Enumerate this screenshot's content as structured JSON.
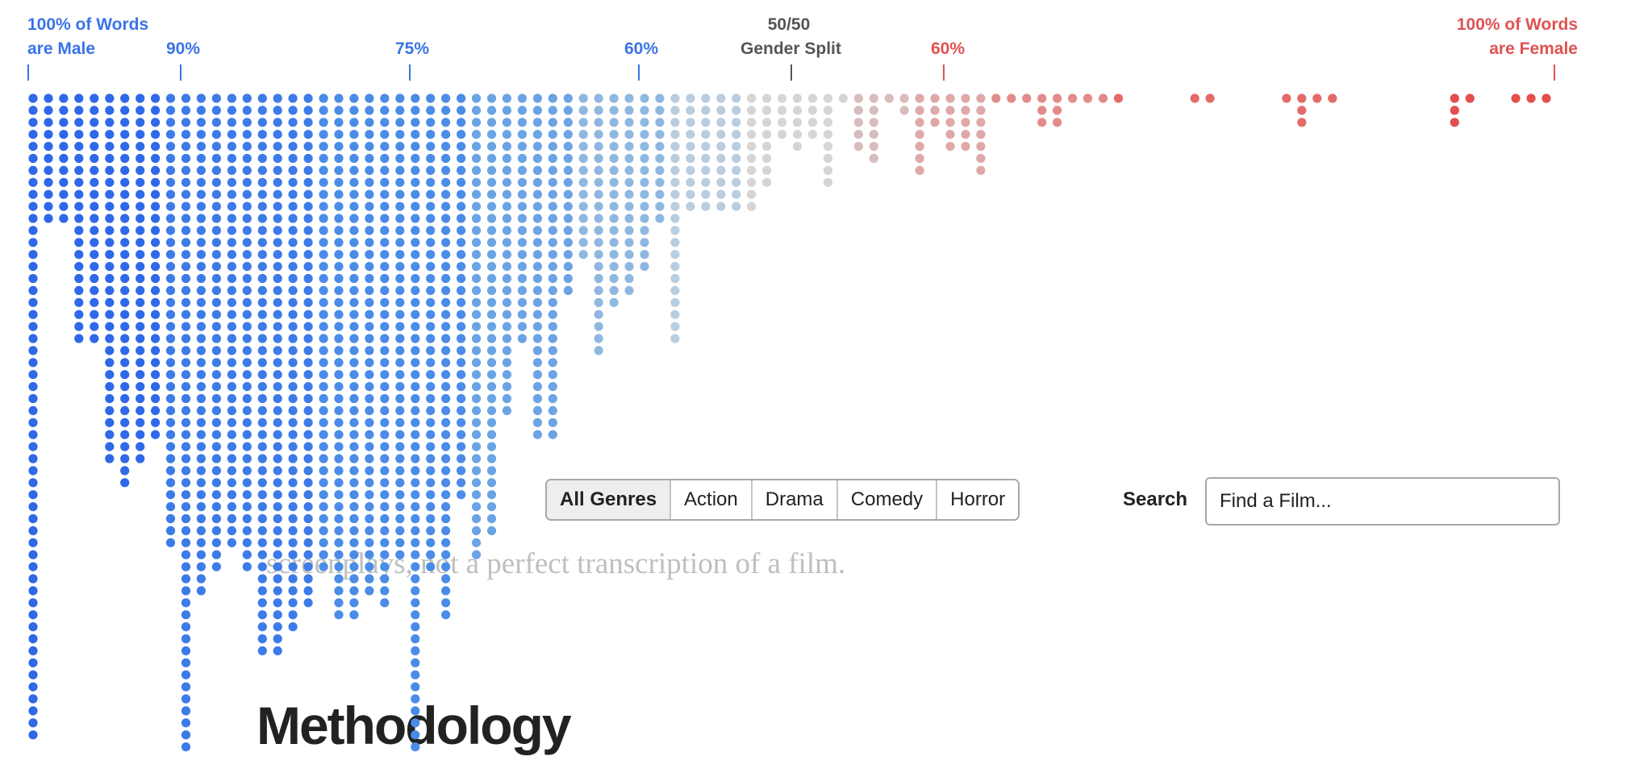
{
  "annotations": {
    "male_full_line1": "100% of Words",
    "male_full_line2": "are Male",
    "male_90": "90%",
    "male_75": "75%",
    "male_60": "60%",
    "split_line1": "50/50",
    "split_line2": "Gender Split",
    "female_60": "60%",
    "female_full_line1": "100% of Words",
    "female_full_line2": "are Female"
  },
  "colors": {
    "male": "#3a73e6",
    "female": "#e05252",
    "neutral": "#555555",
    "male_scale": [
      "#2f68e8",
      "#3c7be8",
      "#4a8ce8",
      "#6ba4e4",
      "#8fb8e0",
      "#b8cde0"
    ],
    "neutral_dot": "#d9d4d4",
    "female_scale": [
      "#d9bcbc",
      "#dea9a9",
      "#e28b8b",
      "#e46a6a",
      "#e34e4e"
    ]
  },
  "background_text": "screenplays, not a perfect transcription of a film.",
  "genre_filter": {
    "options": [
      "All Genres",
      "Action",
      "Drama",
      "Comedy",
      "Horror"
    ],
    "selected": "All Genres"
  },
  "search": {
    "label": "Search",
    "placeholder": "Find a Film..."
  },
  "section_heading": "Methodology",
  "chart_data": {
    "type": "scatter",
    "subtype": "dot histogram (one dot per film)",
    "x_axis": "share of dialogue words spoken by male characters (%)",
    "x_range": [
      100,
      0
    ],
    "x_ticks": [
      "100%",
      "90%",
      "75%",
      "60%",
      "50%",
      "60%",
      "100%"
    ],
    "bins": {
      "x_male_pct": [
        100,
        99,
        98,
        97,
        96,
        95,
        94,
        93,
        92,
        91,
        90,
        89,
        88,
        87,
        86,
        85,
        84,
        83,
        82,
        81,
        80,
        79,
        78,
        77,
        76,
        75,
        74,
        73,
        72,
        71,
        70,
        69,
        68,
        67,
        66,
        65,
        64,
        63,
        62,
        61,
        60,
        59,
        58,
        57,
        56,
        55,
        54,
        53,
        52,
        51,
        50,
        49,
        48,
        47,
        46,
        45,
        44,
        43,
        42,
        41,
        40,
        39,
        38,
        37,
        36,
        35,
        34,
        33,
        32,
        31,
        30,
        29,
        28,
        27,
        26,
        25,
        24,
        23,
        22,
        21,
        20,
        19,
        18,
        17,
        16,
        15,
        14,
        13,
        12,
        11,
        10,
        9,
        8,
        7,
        6,
        5,
        4,
        3,
        2,
        1,
        0
      ],
      "film_count": [
        54,
        11,
        11,
        21,
        21,
        31,
        33,
        31,
        29,
        38,
        55,
        42,
        40,
        38,
        40,
        47,
        47,
        45,
        43,
        40,
        44,
        44,
        42,
        43,
        39,
        55,
        40,
        44,
        34,
        39,
        37,
        27,
        21,
        29,
        29,
        17,
        14,
        22,
        18,
        17,
        15,
        11,
        21,
        10,
        10,
        10,
        10,
        10,
        8,
        4,
        5,
        4,
        8,
        1,
        5,
        6,
        1,
        2,
        7,
        3,
        5,
        5,
        7,
        1,
        1,
        1,
        3,
        3,
        1,
        1,
        1,
        1,
        0,
        0,
        0,
        0,
        1,
        1,
        0,
        0,
        0,
        0,
        1,
        3,
        1,
        1,
        0,
        0,
        0,
        0,
        0,
        0,
        0,
        3,
        1,
        0,
        0,
        1,
        1,
        1,
        0
      ]
    }
  }
}
